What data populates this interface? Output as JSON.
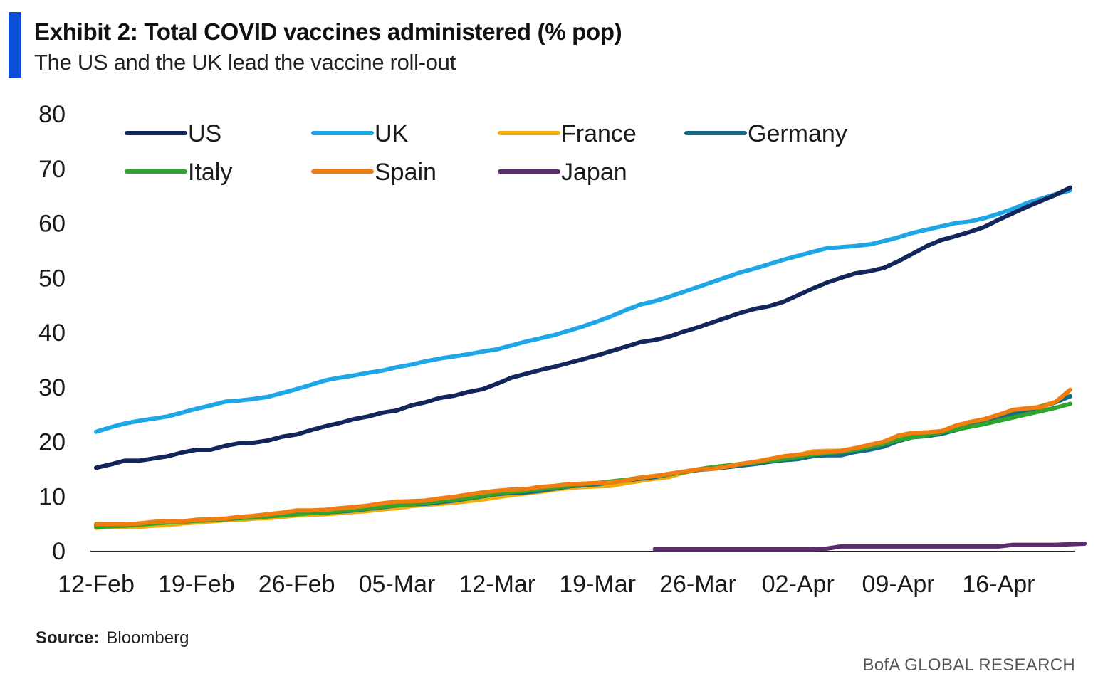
{
  "header": {
    "title": "Exhibit 2: Total COVID vaccines administered (% pop)",
    "subtitle": "The US and the UK lead the vaccine roll-out"
  },
  "footer": {
    "source_label": "Source:",
    "source_value": "Bloomberg",
    "brand": "BofA GLOBAL RESEARCH"
  },
  "chart_data": {
    "type": "line",
    "title": "Exhibit 2: Total COVID vaccines administered (% pop)",
    "xlabel": "",
    "ylabel": "",
    "ylim": [
      0,
      80
    ],
    "yticks": [
      "0",
      "10",
      "20",
      "30",
      "40",
      "50",
      "60",
      "70",
      "80"
    ],
    "xticks": [
      "12-Feb",
      "19-Feb",
      "26-Feb",
      "05-Mar",
      "12-Mar",
      "19-Mar",
      "26-Mar",
      "02-Apr",
      "09-Apr",
      "16-Apr"
    ],
    "x_start": "12-Feb",
    "x_days": 68,
    "legend_position": "top-left",
    "series": [
      {
        "name": "US",
        "color": "#13265c",
        "start_day": 0,
        "values": [
          15.2,
          15.8,
          16.5,
          16.5,
          16.9,
          17.3,
          18.0,
          18.5,
          18.5,
          19.2,
          19.7,
          19.8,
          20.2,
          20.9,
          21.3,
          22.1,
          22.8,
          23.4,
          24.1,
          24.6,
          25.3,
          25.7,
          26.6,
          27.2,
          28.0,
          28.4,
          29.1,
          29.6,
          30.6,
          31.7,
          32.4,
          33.1,
          33.7,
          34.4,
          35.1,
          35.8,
          36.6,
          37.4,
          38.2,
          38.6,
          39.2,
          40.1,
          40.9,
          41.8,
          42.7,
          43.6,
          44.3,
          44.8,
          45.6,
          46.8,
          48.0,
          49.1,
          50.0,
          50.8,
          51.2,
          51.8,
          53.0,
          54.4,
          55.8,
          56.9,
          57.6,
          58.4,
          59.3,
          60.6,
          61.8,
          63.0,
          64.1,
          65.2,
          66.5
        ]
      },
      {
        "name": "UK",
        "color": "#1fa6e6",
        "start_day": 0,
        "values": [
          21.8,
          22.6,
          23.3,
          23.8,
          24.2,
          24.6,
          25.3,
          26.0,
          26.6,
          27.3,
          27.5,
          27.8,
          28.2,
          28.9,
          29.6,
          30.4,
          31.2,
          31.7,
          32.1,
          32.6,
          33.0,
          33.6,
          34.1,
          34.7,
          35.2,
          35.6,
          36.0,
          36.5,
          36.9,
          37.6,
          38.3,
          38.9,
          39.5,
          40.3,
          41.1,
          42.0,
          43.0,
          44.1,
          45.1,
          45.7,
          46.5,
          47.4,
          48.3,
          49.2,
          50.1,
          51.0,
          51.7,
          52.5,
          53.3,
          54.0,
          54.7,
          55.4,
          55.6,
          55.8,
          56.1,
          56.7,
          57.4,
          58.2,
          58.8,
          59.4,
          60.0,
          60.3,
          60.9,
          61.7,
          62.6,
          63.7,
          64.5,
          65.3,
          66.0
        ]
      },
      {
        "name": "France",
        "color": "#f2ad0c",
        "start_day": 0,
        "values": [
          4.2,
          4.4,
          4.4,
          4.4,
          4.6,
          4.7,
          5.0,
          5.2,
          5.4,
          5.6,
          5.6,
          5.9,
          6.0,
          6.2,
          6.5,
          6.6,
          6.7,
          6.9,
          7.1,
          7.3,
          7.6,
          7.8,
          8.2,
          8.4,
          8.6,
          8.8,
          9.1,
          9.4,
          9.8,
          10.2,
          10.5,
          10.8,
          11.2,
          11.5,
          11.7,
          11.8,
          11.9,
          12.4,
          12.8,
          13.2,
          13.5,
          14.3,
          14.8,
          15.1,
          15.4,
          15.7,
          16.0,
          16.4,
          17.1,
          17.5,
          18.2,
          18.3,
          18.3,
          18.7,
          19.2,
          19.7,
          20.5,
          21.0,
          21.3,
          21.6,
          22.4,
          23.1,
          23.7,
          24.7,
          25.4,
          25.9,
          26.5,
          27.3,
          28.4
        ]
      },
      {
        "name": "Germany",
        "color": "#176a88",
        "start_day": 0,
        "values": [
          4.7,
          4.8,
          4.8,
          5.0,
          5.2,
          5.3,
          5.4,
          5.6,
          5.7,
          5.8,
          6.0,
          6.2,
          6.4,
          6.6,
          6.8,
          7.0,
          7.0,
          7.2,
          7.4,
          7.7,
          8.0,
          8.3,
          8.5,
          8.6,
          8.9,
          9.2,
          9.6,
          10.0,
          10.4,
          10.6,
          10.7,
          11.0,
          11.4,
          11.8,
          12.0,
          12.2,
          12.6,
          12.9,
          13.2,
          13.5,
          14.0,
          14.4,
          14.8,
          15.0,
          15.3,
          15.6,
          15.9,
          16.3,
          16.6,
          16.8,
          17.3,
          17.5,
          17.5,
          18.1,
          18.5,
          19.1,
          20.1,
          20.8,
          21.0,
          21.4,
          22.1,
          22.8,
          23.6,
          24.4,
          25.1,
          25.7,
          26.4,
          27.2,
          28.3
        ]
      },
      {
        "name": "Italy",
        "color": "#2fa52f",
        "start_day": 0,
        "values": [
          4.4,
          4.5,
          4.6,
          4.8,
          5.0,
          5.2,
          5.3,
          5.5,
          5.6,
          5.8,
          6.0,
          6.1,
          6.3,
          6.5,
          6.7,
          6.9,
          7.0,
          7.3,
          7.5,
          7.8,
          8.1,
          8.3,
          8.5,
          8.8,
          9.1,
          9.4,
          9.7,
          10.1,
          10.5,
          10.8,
          11.0,
          11.3,
          11.6,
          11.9,
          12.2,
          12.4,
          12.7,
          13.0,
          13.4,
          13.7,
          14.0,
          14.4,
          14.9,
          15.3,
          15.6,
          15.9,
          16.2,
          16.5,
          16.8,
          17.2,
          17.6,
          17.9,
          18.1,
          18.5,
          19.0,
          19.6,
          20.3,
          20.8,
          21.2,
          21.7,
          22.2,
          22.7,
          23.2,
          23.8,
          24.4,
          25.0,
          25.6,
          26.2,
          26.9
        ]
      },
      {
        "name": "Spain",
        "color": "#ef7d0f",
        "start_day": 0,
        "values": [
          4.9,
          4.9,
          4.9,
          5.0,
          5.3,
          5.4,
          5.4,
          5.7,
          5.8,
          5.9,
          6.2,
          6.4,
          6.7,
          7.0,
          7.4,
          7.4,
          7.5,
          7.8,
          8.0,
          8.3,
          8.7,
          9.0,
          9.1,
          9.2,
          9.6,
          9.9,
          10.3,
          10.7,
          11.0,
          11.2,
          11.3,
          11.7,
          11.9,
          12.2,
          12.3,
          12.4,
          12.5,
          12.9,
          13.4,
          13.7,
          14.1,
          14.5,
          14.9,
          15.0,
          15.4,
          15.9,
          16.3,
          16.8,
          17.3,
          17.6,
          17.9,
          18.1,
          18.3,
          18.8,
          19.4,
          20.0,
          21.1,
          21.6,
          21.7,
          21.9,
          22.9,
          23.6,
          24.1,
          24.9,
          25.8,
          26.1,
          26.3,
          27.3,
          29.5
        ]
      },
      {
        "name": "Japan",
        "color": "#5b2b6e",
        "start_day": 39,
        "values": [
          0.3,
          0.3,
          0.3,
          0.3,
          0.3,
          0.3,
          0.3,
          0.3,
          0.3,
          0.3,
          0.3,
          0.3,
          0.4,
          0.8,
          0.8,
          0.8,
          0.8,
          0.8,
          0.8,
          0.8,
          0.8,
          0.8,
          0.8,
          0.8,
          0.8,
          1.1,
          1.1,
          1.1,
          1.1,
          1.2,
          1.3
        ]
      }
    ]
  }
}
